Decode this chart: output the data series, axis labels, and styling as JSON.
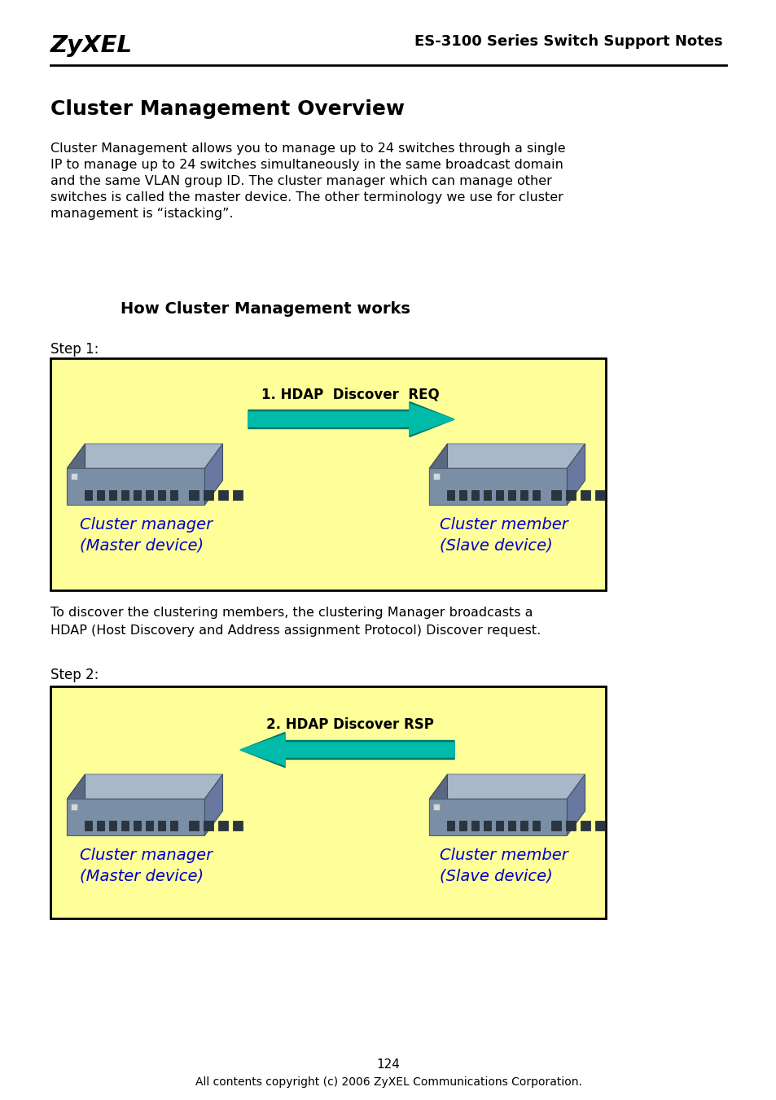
{
  "title_zyxel": "ZyXEL",
  "title_right": "ES-3100 Series Switch Support Notes",
  "main_title": "Cluster Management Overview",
  "body_text_lines": [
    "Cluster Management allows you to manage up to 24 switches through a single",
    "IP to manage up to 24 switches simultaneously in the same broadcast domain",
    "and the same VLAN group ID. The cluster manager which can manage other",
    "switches is called the master device. The other terminology we use for cluster",
    "management is “istacking”."
  ],
  "subtitle": "How Cluster Management works",
  "step1_label": "Step 1:",
  "step2_label": "Step 2:",
  "box1_title": "1. HDAP  Discover  REQ",
  "box2_title": "2. HDAP Discover RSP",
  "left_label1": "Cluster manager",
  "left_label2": "(Master device)",
  "right_label1": "Cluster member",
  "right_label2": "(Slave device)",
  "box_bg": "#FFFF99",
  "box_border": "#000000",
  "label_color": "#0000CC",
  "arrow_fill": "#00BBAA",
  "arrow_outline": "#007766",
  "body_text2_lines": [
    "To discover the clustering members, the clustering Manager broadcasts a",
    "HDAP (Host Discovery and Address assignment Protocol) Discover request."
  ],
  "footer_text": "All contents copyright (c) 2006 ZyXEL Communications Corporation.",
  "page_num": "124",
  "bg_color": "#ffffff"
}
